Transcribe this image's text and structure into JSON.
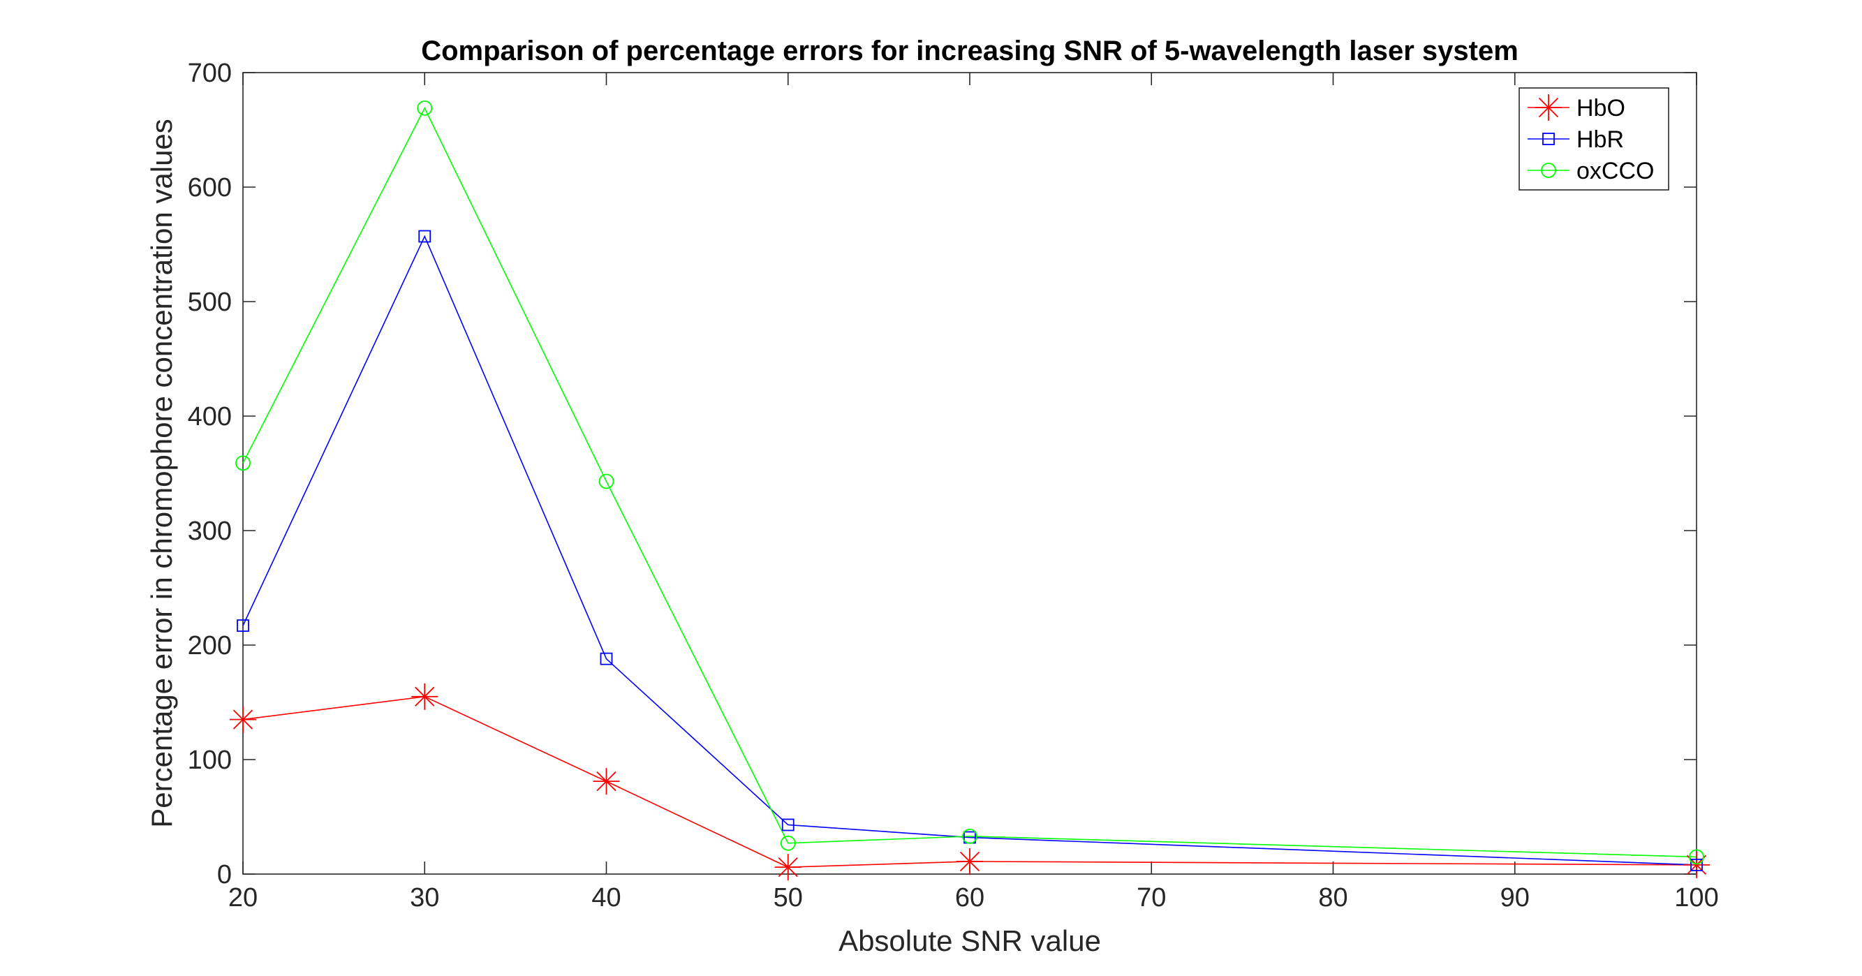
{
  "chart_data": {
    "type": "line",
    "title": "Comparison of percentage errors for increasing SNR of 5-wavelength laser system",
    "xlabel": "Absolute SNR value",
    "ylabel": "Percentage error in chromophore concentration values",
    "xlim": [
      20,
      100
    ],
    "ylim": [
      0,
      700
    ],
    "xticks": [
      20,
      30,
      40,
      50,
      60,
      70,
      80,
      90,
      100
    ],
    "yticks": [
      0,
      100,
      200,
      300,
      400,
      500,
      600,
      700
    ],
    "x": [
      20,
      30,
      40,
      50,
      60,
      100
    ],
    "grid": false,
    "legend_position": "top-right",
    "series": [
      {
        "name": "HbO",
        "values": [
          135,
          155,
          81,
          6,
          11,
          8
        ],
        "color": "#ff0000",
        "marker": "asterisk"
      },
      {
        "name": "HbR",
        "values": [
          217,
          557,
          188,
          43,
          32,
          8
        ],
        "color": "#0000ff",
        "marker": "square"
      },
      {
        "name": "oxCCO",
        "values": [
          359,
          669,
          343,
          27,
          33,
          15
        ],
        "color": "#00ff00",
        "marker": "circle"
      }
    ]
  }
}
